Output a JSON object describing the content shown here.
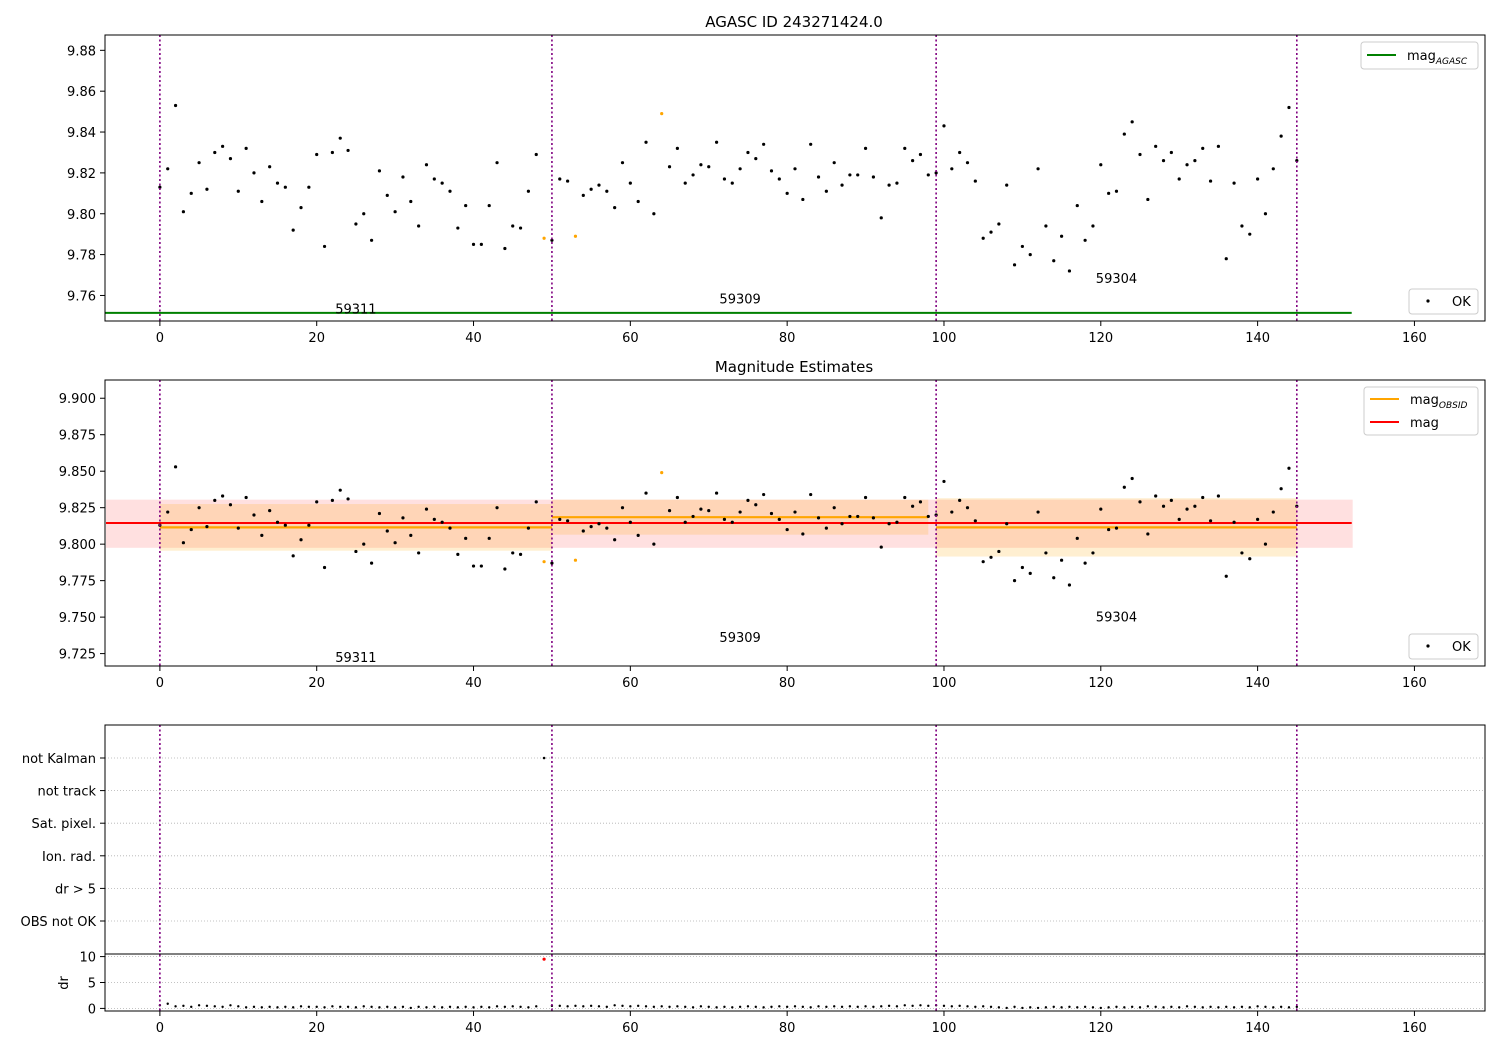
{
  "chart_data": [
    {
      "type": "scatter",
      "title": "AGASC ID 243271424.0",
      "xlabel": "",
      "ylabel": "",
      "xlim": [
        -7,
        169
      ],
      "ylim": [
        9.7475,
        9.8875
      ],
      "x_ticks": [
        0,
        20,
        40,
        60,
        80,
        100,
        120,
        140,
        160
      ],
      "y_ticks": [
        9.76,
        9.78,
        9.8,
        9.82,
        9.84,
        9.86,
        9.88
      ],
      "y_tick_labels": [
        "9.76",
        "9.78",
        "9.80",
        "9.82",
        "9.84",
        "9.86",
        "9.88"
      ],
      "obsid_boundaries": [
        0,
        50,
        99,
        145
      ],
      "obsid_labels": [
        {
          "text": "59311",
          "x": 25,
          "y": 9.7535
        },
        {
          "text": "59309",
          "x": 74,
          "y": 9.7585
        },
        {
          "text": "59304",
          "x": 122,
          "y": 9.7685
        }
      ],
      "hlines": [
        {
          "name": "mag_AGASC",
          "y": 9.7515,
          "x_range": [
            -7,
            152
          ],
          "color": "#008000"
        }
      ],
      "series": [
        {
          "name": "OK",
          "color": "#000000"
        },
        {
          "name": "",
          "color": "#ffa500"
        }
      ],
      "legend": [
        {
          "label_main": "mag",
          "label_sub": "AGASC",
          "kind": "line",
          "color": "#008000",
          "loc": "upper right"
        },
        {
          "label_main": "OK",
          "label_sub": "",
          "kind": "dot",
          "color": "#000000",
          "loc": "lower right"
        }
      ]
    },
    {
      "type": "scatter",
      "title": "Magnitude Estimates",
      "xlabel": "",
      "ylabel": "",
      "xlim": [
        -7,
        169
      ],
      "ylim": [
        9.7165,
        9.9125
      ],
      "x_ticks": [
        0,
        20,
        40,
        60,
        80,
        100,
        120,
        140,
        160
      ],
      "y_ticks": [
        9.725,
        9.75,
        9.775,
        9.8,
        9.825,
        9.85,
        9.875,
        9.9
      ],
      "y_tick_labels": [
        "9.725",
        "9.750",
        "9.775",
        "9.800",
        "9.825",
        "9.850",
        "9.875",
        "9.900"
      ],
      "obsid_boundaries": [
        0,
        50,
        99,
        145
      ],
      "obsid_labels": [
        {
          "text": "59311",
          "x": 25,
          "y": 9.7225
        },
        {
          "text": "59309",
          "x": 74,
          "y": 9.7365
        },
        {
          "text": "59304",
          "x": 122,
          "y": 9.7505
        }
      ],
      "mag_mean": {
        "value": 9.8145,
        "band": [
          9.7975,
          9.8305
        ],
        "x_range": [
          -7,
          152
        ],
        "color": "#ff0000"
      },
      "obsid_means": [
        {
          "x_range": [
            0,
            50
          ],
          "value": 9.8115,
          "band": [
            9.7955,
            9.8275
          ]
        },
        {
          "x_range": [
            50,
            98
          ],
          "value": 9.8185,
          "band": [
            9.8065,
            9.8305
          ]
        },
        {
          "x_range": [
            99,
            145
          ],
          "value": 9.8115,
          "band": [
            9.7915,
            9.8315
          ]
        }
      ],
      "legend": [
        {
          "label_main": "mag",
          "label_sub": "OBSID",
          "kind": "line",
          "color": "#ffa500",
          "loc": "upper right"
        },
        {
          "label_main": "mag",
          "label_sub": "",
          "kind": "line",
          "color": "#ff0000",
          "loc": "upper right"
        },
        {
          "label_main": "OK",
          "label_sub": "",
          "kind": "dot",
          "color": "#000000",
          "loc": "lower right"
        }
      ]
    },
    {
      "type": "scatter",
      "title": "",
      "xlim": [
        -7,
        169
      ],
      "flag_labels": [
        "not Kalman",
        "not track",
        "Sat. pixel.",
        "Ion. rad.",
        "dr > 5",
        "OBS not OK"
      ],
      "flag_points": [
        {
          "flag": "not Kalman",
          "x": 49
        }
      ],
      "dr_ylabel": "dr",
      "dr_ylim": [
        -0.5,
        10.5
      ],
      "dr_ticks": [
        0,
        5,
        10
      ],
      "dr_tick_labels": [
        "0",
        "5",
        "10"
      ],
      "dr_red_points": [
        {
          "x": 49,
          "y": 9.5
        }
      ],
      "obsid_boundaries": [
        0,
        50,
        99,
        145
      ],
      "x_ticks": [
        0,
        20,
        40,
        60,
        80,
        100,
        120,
        140,
        160
      ]
    }
  ],
  "mag_points": [
    {
      "x": 0,
      "y": 9.813
    },
    {
      "x": 1,
      "y": 9.822
    },
    {
      "x": 2,
      "y": 9.853
    },
    {
      "x": 3,
      "y": 9.801
    },
    {
      "x": 4,
      "y": 9.81
    },
    {
      "x": 5,
      "y": 9.825
    },
    {
      "x": 6,
      "y": 9.812
    },
    {
      "x": 7,
      "y": 9.83
    },
    {
      "x": 8,
      "y": 9.833
    },
    {
      "x": 9,
      "y": 9.827
    },
    {
      "x": 10,
      "y": 9.811
    },
    {
      "x": 11,
      "y": 9.832
    },
    {
      "x": 12,
      "y": 9.82
    },
    {
      "x": 13,
      "y": 9.806
    },
    {
      "x": 14,
      "y": 9.823
    },
    {
      "x": 15,
      "y": 9.815
    },
    {
      "x": 16,
      "y": 9.813
    },
    {
      "x": 17,
      "y": 9.792
    },
    {
      "x": 18,
      "y": 9.803
    },
    {
      "x": 19,
      "y": 9.813
    },
    {
      "x": 20,
      "y": 9.829
    },
    {
      "x": 21,
      "y": 9.784
    },
    {
      "x": 22,
      "y": 9.83
    },
    {
      "x": 23,
      "y": 9.837
    },
    {
      "x": 24,
      "y": 9.831
    },
    {
      "x": 25,
      "y": 9.795
    },
    {
      "x": 26,
      "y": 9.8
    },
    {
      "x": 27,
      "y": 9.787
    },
    {
      "x": 28,
      "y": 9.821
    },
    {
      "x": 29,
      "y": 9.809
    },
    {
      "x": 30,
      "y": 9.801
    },
    {
      "x": 31,
      "y": 9.818
    },
    {
      "x": 32,
      "y": 9.806
    },
    {
      "x": 33,
      "y": 9.794
    },
    {
      "x": 34,
      "y": 9.824
    },
    {
      "x": 35,
      "y": 9.817
    },
    {
      "x": 36,
      "y": 9.815
    },
    {
      "x": 37,
      "y": 9.811
    },
    {
      "x": 38,
      "y": 9.793
    },
    {
      "x": 39,
      "y": 9.804
    },
    {
      "x": 40,
      "y": 9.785
    },
    {
      "x": 41,
      "y": 9.785
    },
    {
      "x": 42,
      "y": 9.804
    },
    {
      "x": 43,
      "y": 9.825
    },
    {
      "x": 44,
      "y": 9.783
    },
    {
      "x": 45,
      "y": 9.794
    },
    {
      "x": 46,
      "y": 9.793
    },
    {
      "x": 47,
      "y": 9.811
    },
    {
      "x": 48,
      "y": 9.829
    },
    {
      "x": 49,
      "y": 9.788,
      "c": "o"
    },
    {
      "x": 50,
      "y": 9.787
    },
    {
      "x": 51,
      "y": 9.817
    },
    {
      "x": 52,
      "y": 9.816
    },
    {
      "x": 53,
      "y": 9.789,
      "c": "o"
    },
    {
      "x": 54,
      "y": 9.809
    },
    {
      "x": 55,
      "y": 9.812
    },
    {
      "x": 56,
      "y": 9.814
    },
    {
      "x": 57,
      "y": 9.811
    },
    {
      "x": 58,
      "y": 9.803
    },
    {
      "x": 59,
      "y": 9.825
    },
    {
      "x": 60,
      "y": 9.815
    },
    {
      "x": 61,
      "y": 9.806
    },
    {
      "x": 62,
      "y": 9.835
    },
    {
      "x": 63,
      "y": 9.8
    },
    {
      "x": 64,
      "y": 9.849,
      "c": "o"
    },
    {
      "x": 65,
      "y": 9.823
    },
    {
      "x": 66,
      "y": 9.832
    },
    {
      "x": 67,
      "y": 9.815
    },
    {
      "x": 68,
      "y": 9.819
    },
    {
      "x": 69,
      "y": 9.824
    },
    {
      "x": 70,
      "y": 9.823
    },
    {
      "x": 71,
      "y": 9.835
    },
    {
      "x": 72,
      "y": 9.817
    },
    {
      "x": 73,
      "y": 9.815
    },
    {
      "x": 74,
      "y": 9.822
    },
    {
      "x": 75,
      "y": 9.83
    },
    {
      "x": 76,
      "y": 9.827
    },
    {
      "x": 77,
      "y": 9.834
    },
    {
      "x": 78,
      "y": 9.821
    },
    {
      "x": 79,
      "y": 9.817
    },
    {
      "x": 80,
      "y": 9.81
    },
    {
      "x": 81,
      "y": 9.822
    },
    {
      "x": 82,
      "y": 9.807
    },
    {
      "x": 83,
      "y": 9.834
    },
    {
      "x": 84,
      "y": 9.818
    },
    {
      "x": 85,
      "y": 9.811
    },
    {
      "x": 86,
      "y": 9.825
    },
    {
      "x": 87,
      "y": 9.814
    },
    {
      "x": 88,
      "y": 9.819
    },
    {
      "x": 89,
      "y": 9.819
    },
    {
      "x": 90,
      "y": 9.832
    },
    {
      "x": 91,
      "y": 9.818
    },
    {
      "x": 92,
      "y": 9.798
    },
    {
      "x": 93,
      "y": 9.814
    },
    {
      "x": 94,
      "y": 9.815
    },
    {
      "x": 95,
      "y": 9.832
    },
    {
      "x": 96,
      "y": 9.826
    },
    {
      "x": 97,
      "y": 9.829
    },
    {
      "x": 98,
      "y": 9.819
    },
    {
      "x": 99,
      "y": 9.82
    },
    {
      "x": 100,
      "y": 9.843
    },
    {
      "x": 101,
      "y": 9.822
    },
    {
      "x": 102,
      "y": 9.83
    },
    {
      "x": 103,
      "y": 9.825
    },
    {
      "x": 104,
      "y": 9.816
    },
    {
      "x": 105,
      "y": 9.788
    },
    {
      "x": 106,
      "y": 9.791
    },
    {
      "x": 107,
      "y": 9.795
    },
    {
      "x": 108,
      "y": 9.814
    },
    {
      "x": 109,
      "y": 9.775
    },
    {
      "x": 110,
      "y": 9.784
    },
    {
      "x": 111,
      "y": 9.78
    },
    {
      "x": 112,
      "y": 9.822
    },
    {
      "x": 113,
      "y": 9.794
    },
    {
      "x": 114,
      "y": 9.777
    },
    {
      "x": 115,
      "y": 9.789
    },
    {
      "x": 116,
      "y": 9.772
    },
    {
      "x": 117,
      "y": 9.804
    },
    {
      "x": 118,
      "y": 9.787
    },
    {
      "x": 119,
      "y": 9.794
    },
    {
      "x": 120,
      "y": 9.824
    },
    {
      "x": 121,
      "y": 9.81
    },
    {
      "x": 122,
      "y": 9.811
    },
    {
      "x": 123,
      "y": 9.839
    },
    {
      "x": 124,
      "y": 9.845
    },
    {
      "x": 125,
      "y": 9.829
    },
    {
      "x": 126,
      "y": 9.807
    },
    {
      "x": 127,
      "y": 9.833
    },
    {
      "x": 128,
      "y": 9.826
    },
    {
      "x": 129,
      "y": 9.83
    },
    {
      "x": 130,
      "y": 9.817
    },
    {
      "x": 131,
      "y": 9.824
    },
    {
      "x": 132,
      "y": 9.826
    },
    {
      "x": 133,
      "y": 9.832
    },
    {
      "x": 134,
      "y": 9.816
    },
    {
      "x": 135,
      "y": 9.833
    },
    {
      "x": 136,
      "y": 9.778
    },
    {
      "x": 137,
      "y": 9.815
    },
    {
      "x": 138,
      "y": 9.794
    },
    {
      "x": 139,
      "y": 9.79
    },
    {
      "x": 140,
      "y": 9.817
    },
    {
      "x": 141,
      "y": 9.8
    },
    {
      "x": 142,
      "y": 9.822
    },
    {
      "x": 143,
      "y": 9.838
    },
    {
      "x": 144,
      "y": 9.852
    },
    {
      "x": 145,
      "y": 9.826
    }
  ],
  "dr_points": [
    {
      "x": 0,
      "y": 0.6
    },
    {
      "x": 1,
      "y": 0.9
    },
    {
      "x": 2,
      "y": 0.4
    },
    {
      "x": 3,
      "y": 0.5
    },
    {
      "x": 4,
      "y": 0.3
    },
    {
      "x": 5,
      "y": 0.6
    },
    {
      "x": 6,
      "y": 0.5
    },
    {
      "x": 7,
      "y": 0.4
    },
    {
      "x": 8,
      "y": 0.3
    },
    {
      "x": 9,
      "y": 0.6
    },
    {
      "x": 10,
      "y": 0.4
    },
    {
      "x": 11,
      "y": 0.2
    },
    {
      "x": 12,
      "y": 0.3
    },
    {
      "x": 13,
      "y": 0.2
    },
    {
      "x": 14,
      "y": 0.3
    },
    {
      "x": 15,
      "y": 0.2
    },
    {
      "x": 16,
      "y": 0.3
    },
    {
      "x": 17,
      "y": 0.2
    },
    {
      "x": 18,
      "y": 0.4
    },
    {
      "x": 19,
      "y": 0.3
    },
    {
      "x": 20,
      "y": 0.3
    },
    {
      "x": 21,
      "y": 0.2
    },
    {
      "x": 22,
      "y": 0.4
    },
    {
      "x": 23,
      "y": 0.3
    },
    {
      "x": 24,
      "y": 0.3
    },
    {
      "x": 25,
      "y": 0.2
    },
    {
      "x": 26,
      "y": 0.4
    },
    {
      "x": 27,
      "y": 0.3
    },
    {
      "x": 28,
      "y": 0.2
    },
    {
      "x": 29,
      "y": 0.3
    },
    {
      "x": 30,
      "y": 0.2
    },
    {
      "x": 31,
      "y": 0.3
    },
    {
      "x": 32,
      "y": 0.1
    },
    {
      "x": 33,
      "y": 0.3
    },
    {
      "x": 34,
      "y": 0.2
    },
    {
      "x": 35,
      "y": 0.3
    },
    {
      "x": 36,
      "y": 0.2
    },
    {
      "x": 37,
      "y": 0.3
    },
    {
      "x": 38,
      "y": 0.2
    },
    {
      "x": 39,
      "y": 0.3
    },
    {
      "x": 40,
      "y": 0.2
    },
    {
      "x": 41,
      "y": 0.3
    },
    {
      "x": 42,
      "y": 0.2
    },
    {
      "x": 43,
      "y": 0.4
    },
    {
      "x": 44,
      "y": 0.3
    },
    {
      "x": 45,
      "y": 0.4
    },
    {
      "x": 46,
      "y": 0.3
    },
    {
      "x": 47,
      "y": 0.2
    },
    {
      "x": 48,
      "y": 0.4
    },
    {
      "x": 50,
      "y": 0.5
    },
    {
      "x": 51,
      "y": 0.5
    },
    {
      "x": 52,
      "y": 0.4
    },
    {
      "x": 53,
      "y": 0.5
    },
    {
      "x": 54,
      "y": 0.4
    },
    {
      "x": 55,
      "y": 0.5
    },
    {
      "x": 56,
      "y": 0.4
    },
    {
      "x": 57,
      "y": 0.3
    },
    {
      "x": 58,
      "y": 0.6
    },
    {
      "x": 59,
      "y": 0.5
    },
    {
      "x": 60,
      "y": 0.4
    },
    {
      "x": 61,
      "y": 0.5
    },
    {
      "x": 62,
      "y": 0.4
    },
    {
      "x": 63,
      "y": 0.3
    },
    {
      "x": 64,
      "y": 0.4
    },
    {
      "x": 65,
      "y": 0.3
    },
    {
      "x": 66,
      "y": 0.4
    },
    {
      "x": 67,
      "y": 0.3
    },
    {
      "x": 68,
      "y": 0.2
    },
    {
      "x": 69,
      "y": 0.4
    },
    {
      "x": 70,
      "y": 0.3
    },
    {
      "x": 71,
      "y": 0.2
    },
    {
      "x": 72,
      "y": 0.3
    },
    {
      "x": 73,
      "y": 0.2
    },
    {
      "x": 74,
      "y": 0.3
    },
    {
      "x": 75,
      "y": 0.4
    },
    {
      "x": 76,
      "y": 0.3
    },
    {
      "x": 77,
      "y": 0.2
    },
    {
      "x": 78,
      "y": 0.3
    },
    {
      "x": 79,
      "y": 0.4
    },
    {
      "x": 80,
      "y": 0.3
    },
    {
      "x": 81,
      "y": 0.4
    },
    {
      "x": 82,
      "y": 0.3
    },
    {
      "x": 83,
      "y": 0.2
    },
    {
      "x": 84,
      "y": 0.4
    },
    {
      "x": 85,
      "y": 0.3
    },
    {
      "x": 86,
      "y": 0.4
    },
    {
      "x": 87,
      "y": 0.3
    },
    {
      "x": 88,
      "y": 0.4
    },
    {
      "x": 89,
      "y": 0.3
    },
    {
      "x": 90,
      "y": 0.4
    },
    {
      "x": 91,
      "y": 0.3
    },
    {
      "x": 92,
      "y": 0.4
    },
    {
      "x": 93,
      "y": 0.5
    },
    {
      "x": 94,
      "y": 0.4
    },
    {
      "x": 95,
      "y": 0.6
    },
    {
      "x": 96,
      "y": 0.5
    },
    {
      "x": 97,
      "y": 0.6
    },
    {
      "x": 98,
      "y": 0.5
    },
    {
      "x": 99,
      "y": 0.6
    },
    {
      "x": 100,
      "y": 0.5
    },
    {
      "x": 101,
      "y": 0.4
    },
    {
      "x": 102,
      "y": 0.5
    },
    {
      "x": 103,
      "y": 0.4
    },
    {
      "x": 104,
      "y": 0.3
    },
    {
      "x": 105,
      "y": 0.4
    },
    {
      "x": 106,
      "y": 0.3
    },
    {
      "x": 107,
      "y": 0.2
    },
    {
      "x": 108,
      "y": 0.1
    },
    {
      "x": 109,
      "y": 0.3
    },
    {
      "x": 110,
      "y": 0.1
    },
    {
      "x": 111,
      "y": 0.2
    },
    {
      "x": 112,
      "y": 0.1
    },
    {
      "x": 113,
      "y": 0.2
    },
    {
      "x": 114,
      "y": 0.3
    },
    {
      "x": 115,
      "y": 0.2
    },
    {
      "x": 116,
      "y": 0.3
    },
    {
      "x": 117,
      "y": 0.2
    },
    {
      "x": 118,
      "y": 0.3
    },
    {
      "x": 119,
      "y": 0.2
    },
    {
      "x": 120,
      "y": 0.1
    },
    {
      "x": 121,
      "y": 0.2
    },
    {
      "x": 122,
      "y": 0.3
    },
    {
      "x": 123,
      "y": 0.2
    },
    {
      "x": 124,
      "y": 0.3
    },
    {
      "x": 125,
      "y": 0.2
    },
    {
      "x": 126,
      "y": 0.4
    },
    {
      "x": 127,
      "y": 0.3
    },
    {
      "x": 128,
      "y": 0.2
    },
    {
      "x": 129,
      "y": 0.3
    },
    {
      "x": 130,
      "y": 0.2
    },
    {
      "x": 131,
      "y": 0.4
    },
    {
      "x": 132,
      "y": 0.3
    },
    {
      "x": 133,
      "y": 0.2
    },
    {
      "x": 134,
      "y": 0.3
    },
    {
      "x": 135,
      "y": 0.2
    },
    {
      "x": 136,
      "y": 0.3
    },
    {
      "x": 137,
      "y": 0.2
    },
    {
      "x": 138,
      "y": 0.3
    },
    {
      "x": 139,
      "y": 0.2
    },
    {
      "x": 140,
      "y": 0.4
    },
    {
      "x": 141,
      "y": 0.3
    },
    {
      "x": 142,
      "y": 0.2
    },
    {
      "x": 143,
      "y": 0.3
    },
    {
      "x": 144,
      "y": 0.2
    },
    {
      "x": 145,
      "y": 0.3
    }
  ]
}
